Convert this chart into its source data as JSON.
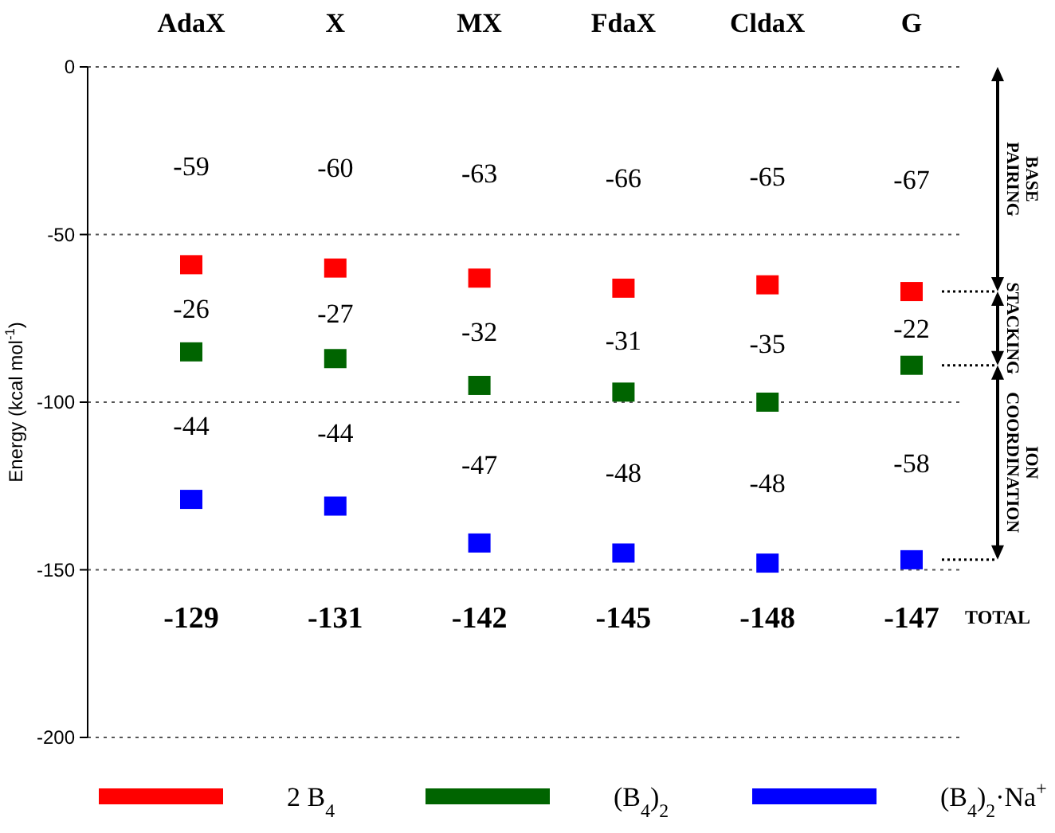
{
  "chart_data": {
    "type": "scatter",
    "ylabel": "Energy  (kcal mol$^{-1}$)",
    "categories": [
      "AdaX",
      "X",
      "MX",
      "FdaX",
      "CldaX",
      "G"
    ],
    "ylim": [
      -200,
      0
    ],
    "yticks": [
      0,
      -50,
      -100,
      -150,
      -200
    ],
    "grid": "y",
    "legend": "bottom",
    "marker": "square",
    "series": [
      {
        "name": "2 B$_{4}$",
        "color": "#ff0000",
        "values": [
          -59,
          -60,
          -63,
          -66,
          -65,
          -67
        ]
      },
      {
        "name": "(B$_{4}$)$_{2}$",
        "color": "#006400",
        "values": [
          -85,
          -87,
          -95,
          -97,
          -100,
          -89
        ]
      },
      {
        "name": "(B$_{4}$)$_{2}$·Na$^{+}$",
        "color": "#0000ff",
        "values": [
          -129,
          -131,
          -142,
          -145,
          -148,
          -147
        ]
      }
    ],
    "annotations": [
      "-59",
      "-60",
      "-63",
      "-66",
      "-65",
      "-67",
      "-26",
      "-27",
      "-32",
      "-31",
      "-35",
      "-22",
      "-44",
      "-44",
      "-47",
      "-48",
      "-48",
      "-58",
      "-129",
      "-131",
      "-142",
      "-145",
      "-148",
      "-147",
      "BASE PAIRING",
      "STACKING",
      "ION COORDINATION",
      "TOTAL"
    ]
  }
}
